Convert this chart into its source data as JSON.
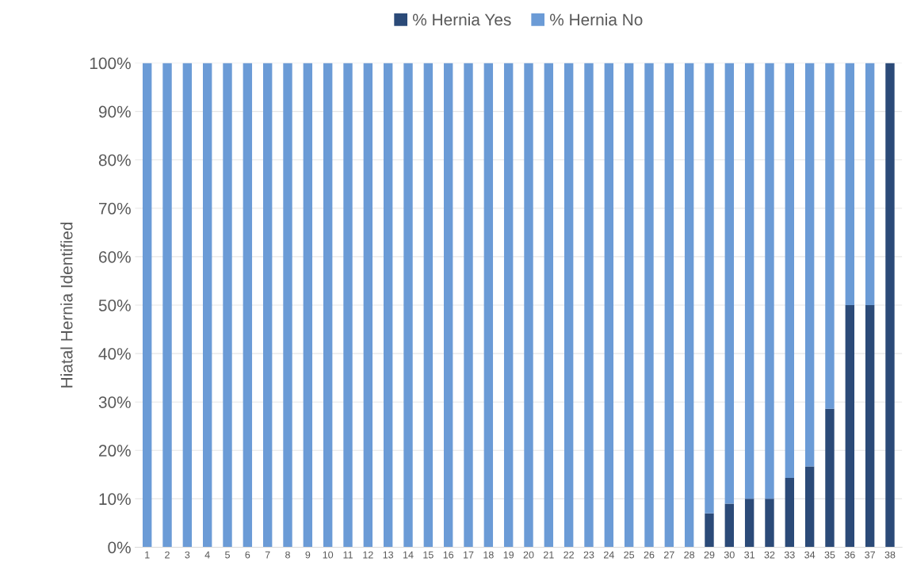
{
  "chart_data": {
    "type": "bar",
    "stacked": true,
    "ylabel": "Hiatal Hernia Identified",
    "categories": [
      "1",
      "2",
      "3",
      "4",
      "5",
      "6",
      "7",
      "8",
      "9",
      "10",
      "11",
      "12",
      "13",
      "14",
      "15",
      "16",
      "17",
      "18",
      "19",
      "20",
      "21",
      "22",
      "23",
      "24",
      "25",
      "26",
      "27",
      "28",
      "29",
      "30",
      "31",
      "32",
      "33",
      "34",
      "35",
      "36",
      "37",
      "38"
    ],
    "series": [
      {
        "name": "% Hernia Yes",
        "color": "#2b4a78",
        "values": [
          0,
          0,
          0,
          0,
          0,
          0,
          0,
          0,
          0,
          0,
          0,
          0,
          0,
          0,
          0,
          0,
          0,
          0,
          0,
          0,
          0,
          0,
          0,
          0,
          0,
          0,
          0,
          0,
          7,
          9,
          10,
          10,
          14.3,
          16.7,
          28.6,
          50,
          50,
          100
        ]
      },
      {
        "name": "% Hernia No",
        "color": "#6b9bd6",
        "values": [
          100,
          100,
          100,
          100,
          100,
          100,
          100,
          100,
          100,
          100,
          100,
          100,
          100,
          100,
          100,
          100,
          100,
          100,
          100,
          100,
          100,
          100,
          100,
          100,
          100,
          100,
          100,
          100,
          93,
          91,
          90,
          90,
          85.7,
          83.3,
          71.4,
          50,
          50,
          0
        ]
      }
    ],
    "ylim": [
      0,
      100
    ],
    "yticks": [
      {
        "value": 0,
        "label": "0%"
      },
      {
        "value": 10,
        "label": "10%"
      },
      {
        "value": 20,
        "label": "20%"
      },
      {
        "value": 30,
        "label": "30%"
      },
      {
        "value": 40,
        "label": "40%"
      },
      {
        "value": 50,
        "label": "50%"
      },
      {
        "value": 60,
        "label": "60%"
      },
      {
        "value": 70,
        "label": "70%"
      },
      {
        "value": 80,
        "label": "80%"
      },
      {
        "value": 90,
        "label": "90%"
      },
      {
        "value": 100,
        "label": "100%"
      }
    ],
    "grid": "y",
    "legend": "top"
  }
}
